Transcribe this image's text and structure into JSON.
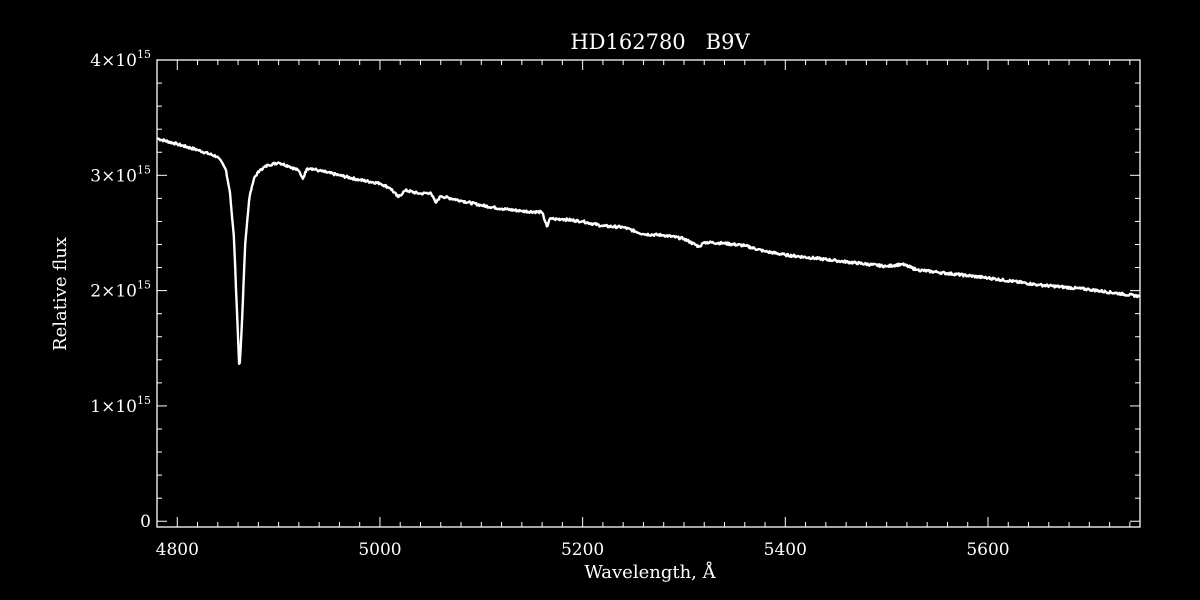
{
  "chart_data": {
    "type": "line",
    "title": "HD162780   B9V",
    "xlabel": "Wavelength, Å",
    "ylabel": "Relative flux",
    "xlim": [
      4780,
      5750
    ],
    "ylim": [
      -50000000000000.0,
      4000000000000000.0
    ],
    "x_ticks": [
      {
        "value": 4800,
        "label": "4800"
      },
      {
        "value": 5000,
        "label": "5000"
      },
      {
        "value": 5200,
        "label": "5200"
      },
      {
        "value": 5400,
        "label": "5400"
      },
      {
        "value": 5600,
        "label": "5600"
      }
    ],
    "y_ticks": [
      {
        "value": 0,
        "label": "0"
      },
      {
        "value": 1000000000000000.0,
        "mantissa": "1",
        "base": "×10",
        "exponent": "15"
      },
      {
        "value": 2000000000000000.0,
        "mantissa": "2",
        "base": "×10",
        "exponent": "15"
      },
      {
        "value": 3000000000000000.0,
        "mantissa": "3",
        "base": "×10",
        "exponent": "15"
      },
      {
        "value": 4000000000000000.0,
        "mantissa": "4",
        "base": "×10",
        "exponent": "15"
      }
    ],
    "grid": false,
    "colors": {
      "background": "#000000",
      "foreground": "#ffffff"
    },
    "series": [
      {
        "x": [
          4780,
          4800,
          4820,
          4840,
          4848,
          4852,
          4856,
          4859,
          4861.3,
          4864,
          4867,
          4871,
          4876,
          4882,
          4890,
          4900,
          4910,
          4920,
          4924,
          4928,
          4932,
          4940,
          4960,
          4980,
          5000,
          5010,
          5018,
          5025,
          5040,
          5050,
          5055,
          5060,
          5080,
          5100,
          5120,
          5140,
          5160,
          5165,
          5168,
          5172,
          5180,
          5200,
          5220,
          5240,
          5260,
          5280,
          5300,
          5315,
          5320,
          5340,
          5360,
          5380,
          5400,
          5450,
          5500,
          5515,
          5530,
          5550,
          5600,
          5650,
          5700,
          5750
        ],
        "y": [
          3320000000000000.0,
          3270000000000000.0,
          3220000000000000.0,
          3160000000000000.0,
          3050000000000000.0,
          2850000000000000.0,
          2450000000000000.0,
          1800000000000000.0,
          1300000000000000.0,
          1750000000000000.0,
          2400000000000000.0,
          2800000000000000.0,
          2980000000000000.0,
          3050000000000000.0,
          3090000000000000.0,
          3110000000000000.0,
          3080000000000000.0,
          3040000000000000.0,
          2970000000000000.0,
          3060000000000000.0,
          3060000000000000.0,
          3040000000000000.0,
          3000000000000000.0,
          2960000000000000.0,
          2930000000000000.0,
          2890000000000000.0,
          2810000000000000.0,
          2870000000000000.0,
          2840000000000000.0,
          2850000000000000.0,
          2760000000000000.0,
          2820000000000000.0,
          2780000000000000.0,
          2740000000000000.0,
          2710000000000000.0,
          2690000000000000.0,
          2680000000000000.0,
          2550000000000000.0,
          2630000000000000.0,
          2620000000000000.0,
          2620000000000000.0,
          2600000000000000.0,
          2560000000000000.0,
          2550000000000000.0,
          2490000000000000.0,
          2480000000000000.0,
          2450000000000000.0,
          2380000000000000.0,
          2420000000000000.0,
          2410000000000000.0,
          2390000000000000.0,
          2340000000000000.0,
          2310000000000000.0,
          2260000000000000.0,
          2210000000000000.0,
          2230000000000000.0,
          2180000000000000.0,
          2160000000000000.0,
          2110000000000000.0,
          2050000000000000.0,
          2010000000000000.0,
          1950000000000000.0
        ]
      }
    ]
  }
}
